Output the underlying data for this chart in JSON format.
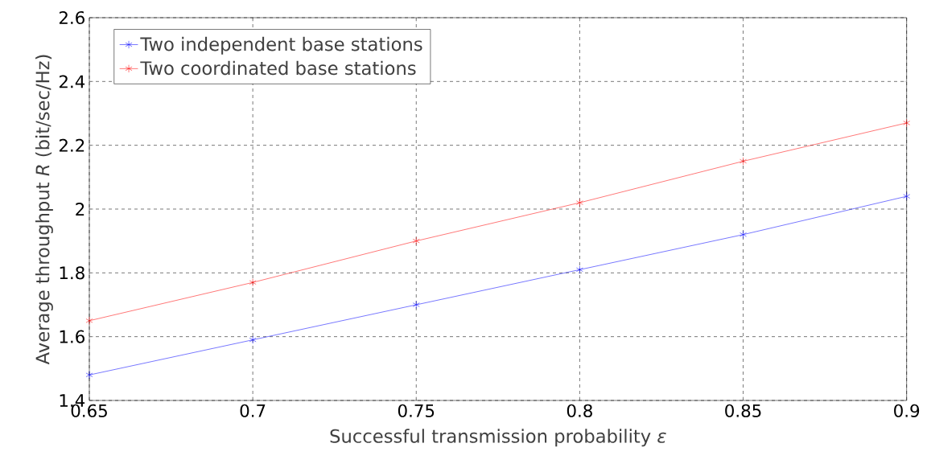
{
  "chart_data": {
    "type": "line",
    "xlabel": "Successful transmission probability *ε*",
    "ylabel": "Average throughput *R* (bit/sec/Hz)",
    "x": [
      0.65,
      0.7,
      0.75,
      0.8,
      0.85,
      0.9
    ],
    "series": [
      {
        "name": "Two independent base stations",
        "color": "#0000ff",
        "values": [
          1.48,
          1.59,
          1.7,
          1.81,
          1.92,
          2.04
        ]
      },
      {
        "name": "Two coordinated base stations",
        "color": "#ff0000",
        "values": [
          1.65,
          1.77,
          1.9,
          2.02,
          2.15,
          2.27
        ]
      }
    ],
    "xlim": [
      0.65,
      0.9
    ],
    "xticks": [
      0.65,
      0.7,
      0.75,
      0.8,
      0.85,
      0.9
    ],
    "ylim": [
      1.4,
      2.6
    ],
    "yticks": [
      1.4,
      1.6,
      1.8,
      2,
      2.2,
      2.4,
      2.6
    ],
    "grid": true,
    "legend": "top left",
    "marker": "cross",
    "line_style": "solid"
  }
}
